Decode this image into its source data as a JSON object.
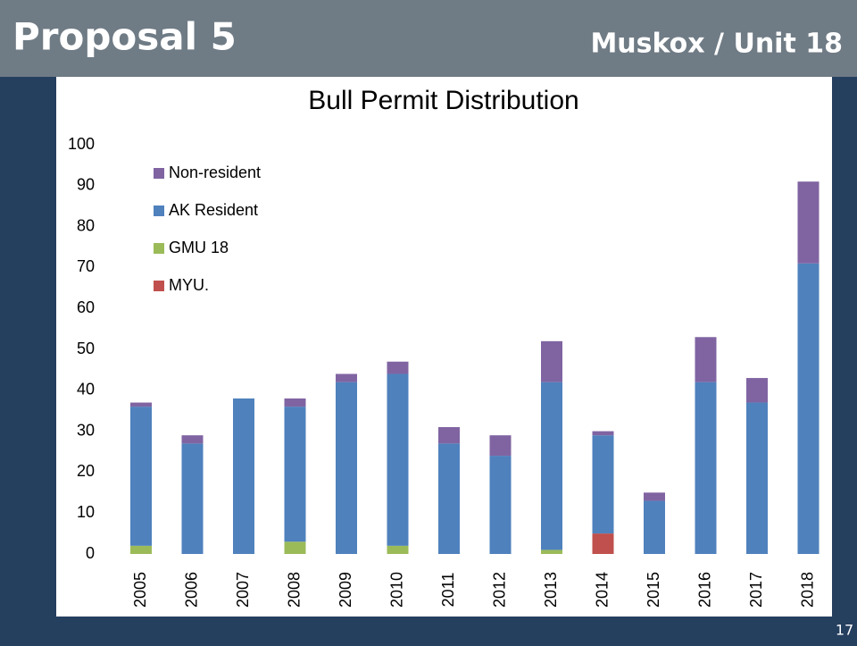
{
  "header": {
    "title": "Proposal 5",
    "subtitle": "Muskox / Unit 18"
  },
  "page_number": "17",
  "chart_data": {
    "type": "stacked_bar",
    "title": "Bull Permit Distribution",
    "categories": [
      "2005",
      "2006",
      "2007",
      "2008",
      "2009",
      "2010",
      "2011",
      "2012",
      "2013",
      "2014",
      "2015",
      "2016",
      "2017",
      "2018"
    ],
    "series": [
      {
        "name": "MYU.",
        "color": "#c0504d",
        "values": [
          0,
          0,
          0,
          0,
          0,
          0,
          0,
          0,
          0,
          5,
          0,
          0,
          0,
          0
        ]
      },
      {
        "name": "GMU 18",
        "color": "#9bbb59",
        "values": [
          2,
          0,
          0,
          3,
          0,
          2,
          0,
          0,
          1,
          0,
          0,
          0,
          0,
          0
        ]
      },
      {
        "name": "AK Resident",
        "color": "#4f81bd",
        "values": [
          34,
          27,
          38,
          33,
          42,
          42,
          27,
          24,
          41,
          24,
          13,
          42,
          37,
          71
        ]
      },
      {
        "name": "Non-resident",
        "color": "#8064a2",
        "values": [
          1,
          2,
          0,
          2,
          2,
          3,
          4,
          5,
          10,
          1,
          2,
          11,
          6,
          20
        ]
      }
    ],
    "ylim": [
      0,
      100
    ],
    "yticks": [
      0,
      10,
      20,
      30,
      40,
      50,
      60,
      70,
      80,
      90,
      100
    ],
    "legend": "upper left"
  }
}
